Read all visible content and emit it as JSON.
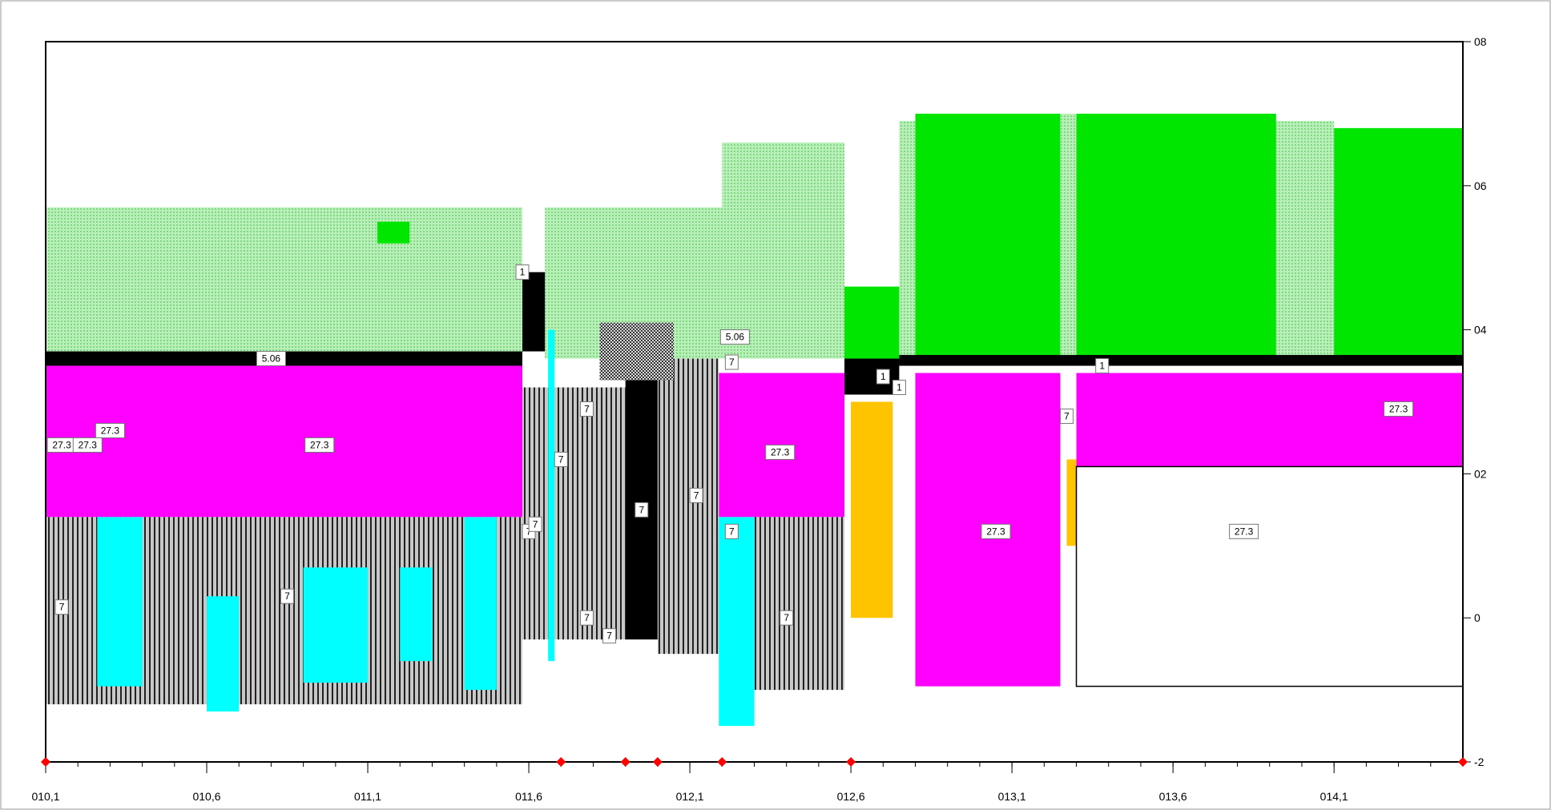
{
  "chart_data": {
    "type": "area",
    "title": "",
    "xlabel": "",
    "ylabel": "",
    "xlim": [
      10.0,
      14.4
    ],
    "ylim": [
      -2,
      8
    ],
    "x_ticks": [
      {
        "value": 10.0,
        "label": "010,1"
      },
      {
        "value": 10.5,
        "label": "010,6"
      },
      {
        "value": 11.0,
        "label": "011,1"
      },
      {
        "value": 11.5,
        "label": "011,6"
      },
      {
        "value": 12.0,
        "label": "012,1"
      },
      {
        "value": 12.5,
        "label": "012,6"
      },
      {
        "value": 13.0,
        "label": "013,1"
      },
      {
        "value": 13.5,
        "label": "013,6"
      },
      {
        "value": 14.0,
        "label": "014,1"
      }
    ],
    "y_ticks": [
      {
        "value": 8,
        "label": "08"
      },
      {
        "value": 6,
        "label": "06"
      },
      {
        "value": 4,
        "label": "04"
      },
      {
        "value": 2,
        "label": "02"
      },
      {
        "value": 0,
        "label": "0"
      },
      {
        "value": -2,
        "label": "-2"
      }
    ],
    "markers_x": [
      10.0,
      11.6,
      11.8,
      11.9,
      12.1,
      12.5,
      14.4
    ],
    "colors": {
      "light_green": "#9be89b",
      "green": "#00e600",
      "black": "#000000",
      "magenta": "#ff00ff",
      "cyan": "#00ffff",
      "gray_stripe": "#b9b9b9",
      "orange": "#ffc400",
      "white": "#ffffff",
      "crosshatch": "#777777"
    },
    "layers": [
      {
        "kind": "light_green",
        "x0": 10.0,
        "x1": 11.48,
        "y0": 3.7,
        "y1": 5.7
      },
      {
        "kind": "light_green",
        "x0": 11.55,
        "x1": 12.48,
        "y0": 3.6,
        "y1": 5.7
      },
      {
        "kind": "light_green",
        "x0": 12.1,
        "x1": 12.48,
        "y0": 4.2,
        "y1": 6.6
      },
      {
        "kind": "light_green",
        "x0": 12.65,
        "x1": 12.7,
        "y0": 3.6,
        "y1": 6.9
      },
      {
        "kind": "light_green",
        "x0": 13.15,
        "x1": 13.2,
        "y0": 3.6,
        "y1": 7.0
      },
      {
        "kind": "light_green",
        "x0": 13.82,
        "x1": 14.0,
        "y0": 3.6,
        "y1": 6.9
      },
      {
        "kind": "green",
        "x0": 12.48,
        "x1": 12.65,
        "y0": 3.6,
        "y1": 4.6
      },
      {
        "kind": "green",
        "x0": 12.7,
        "x1": 13.15,
        "y0": 3.6,
        "y1": 7.0
      },
      {
        "kind": "green",
        "x0": 13.2,
        "x1": 13.82,
        "y0": 3.6,
        "y1": 7.0
      },
      {
        "kind": "green",
        "x0": 14.0,
        "x1": 14.4,
        "y0": 3.6,
        "y1": 6.8
      },
      {
        "kind": "green",
        "x0": 11.03,
        "x1": 11.13,
        "y0": 5.2,
        "y1": 5.5
      },
      {
        "kind": "black",
        "x0": 10.0,
        "x1": 11.48,
        "y0": 3.5,
        "y1": 3.7
      },
      {
        "kind": "black",
        "x0": 11.48,
        "x1": 11.55,
        "y0": 3.7,
        "y1": 4.8
      },
      {
        "kind": "black",
        "x0": 12.48,
        "x1": 12.65,
        "y0": 3.1,
        "y1": 3.6
      },
      {
        "kind": "black",
        "x0": 12.65,
        "x1": 14.4,
        "y0": 3.5,
        "y1": 3.65
      },
      {
        "kind": "black",
        "x0": 11.8,
        "x1": 11.9,
        "y0": -0.3,
        "y1": 3.3
      },
      {
        "kind": "magenta",
        "x0": 10.0,
        "x1": 11.48,
        "y0": 1.4,
        "y1": 3.5
      },
      {
        "kind": "magenta",
        "x0": 12.09,
        "x1": 12.48,
        "y0": 1.4,
        "y1": 3.4
      },
      {
        "kind": "magenta",
        "x0": 12.7,
        "x1": 13.15,
        "y0": -0.95,
        "y1": 3.4
      },
      {
        "kind": "magenta",
        "x0": 13.2,
        "x1": 14.4,
        "y0": 2.1,
        "y1": 3.4
      },
      {
        "kind": "gray_stripe",
        "x0": 10.0,
        "x1": 11.48,
        "y0": -1.2,
        "y1": 1.4
      },
      {
        "kind": "gray_stripe",
        "x0": 11.48,
        "x1": 11.8,
        "y0": -0.3,
        "y1": 3.2
      },
      {
        "kind": "gray_stripe",
        "x0": 11.9,
        "x1": 12.09,
        "y0": -0.5,
        "y1": 3.6
      },
      {
        "kind": "gray_stripe",
        "x0": 12.2,
        "x1": 12.48,
        "y0": -1.0,
        "y1": 1.4
      },
      {
        "kind": "cyan",
        "x0": 10.16,
        "x1": 10.3,
        "y0": -0.95,
        "y1": 1.4
      },
      {
        "kind": "cyan",
        "x0": 10.5,
        "x1": 10.6,
        "y0": -1.3,
        "y1": 0.3
      },
      {
        "kind": "cyan",
        "x0": 10.8,
        "x1": 11.0,
        "y0": -0.9,
        "y1": 0.7
      },
      {
        "kind": "cyan",
        "x0": 11.1,
        "x1": 11.2,
        "y0": -0.6,
        "y1": 0.7
      },
      {
        "kind": "cyan",
        "x0": 11.3,
        "x1": 11.4,
        "y0": -1.0,
        "y1": 1.4
      },
      {
        "kind": "cyan",
        "x0": 12.09,
        "x1": 12.2,
        "y0": -1.5,
        "y1": 1.4
      },
      {
        "kind": "cyan",
        "x0": 11.56,
        "x1": 11.58,
        "y0": -0.6,
        "y1": 4.0
      },
      {
        "kind": "orange",
        "x0": 12.5,
        "x1": 12.63,
        "y0": 0.0,
        "y1": 3.0
      },
      {
        "kind": "orange",
        "x0": 13.17,
        "x1": 13.2,
        "y0": 1.0,
        "y1": 2.2
      },
      {
        "kind": "crosshatch",
        "x0": 11.72,
        "x1": 11.95,
        "y0": 3.3,
        "y1": 4.1
      },
      {
        "kind": "white",
        "x0": 13.2,
        "x1": 14.4,
        "y0": -0.95,
        "y1": 2.1
      }
    ],
    "data_labels": [
      {
        "x": 10.05,
        "y": 2.4,
        "text": "27.3"
      },
      {
        "x": 10.13,
        "y": 2.4,
        "text": "27.3"
      },
      {
        "x": 10.2,
        "y": 2.6,
        "text": "27.3"
      },
      {
        "x": 10.85,
        "y": 2.4,
        "text": "27.3"
      },
      {
        "x": 12.28,
        "y": 2.3,
        "text": "27.3"
      },
      {
        "x": 12.95,
        "y": 1.2,
        "text": "27.3"
      },
      {
        "x": 13.72,
        "y": 1.2,
        "text": "27.3"
      },
      {
        "x": 14.2,
        "y": 2.9,
        "text": "27.3"
      },
      {
        "x": 10.7,
        "y": 3.6,
        "text": "5.06"
      },
      {
        "x": 12.14,
        "y": 3.9,
        "text": "5.06"
      },
      {
        "x": 10.05,
        "y": 0.15,
        "text": "7"
      },
      {
        "x": 10.75,
        "y": 0.3,
        "text": "7"
      },
      {
        "x": 11.6,
        "y": 2.2,
        "text": "7"
      },
      {
        "x": 11.68,
        "y": 2.9,
        "text": "7"
      },
      {
        "x": 11.5,
        "y": 1.2,
        "text": "7"
      },
      {
        "x": 11.52,
        "y": 1.3,
        "text": "7"
      },
      {
        "x": 11.68,
        "y": 0.0,
        "text": "7"
      },
      {
        "x": 11.75,
        "y": -0.25,
        "text": "7"
      },
      {
        "x": 11.85,
        "y": 1.5,
        "text": "7"
      },
      {
        "x": 12.02,
        "y": 1.7,
        "text": "7"
      },
      {
        "x": 12.13,
        "y": 1.2,
        "text": "7"
      },
      {
        "x": 12.13,
        "y": 3.55,
        "text": "7"
      },
      {
        "x": 12.3,
        "y": 0.0,
        "text": "7"
      },
      {
        "x": 13.17,
        "y": 2.8,
        "text": "7"
      },
      {
        "x": 11.48,
        "y": 4.8,
        "text": "1"
      },
      {
        "x": 12.6,
        "y": 3.35,
        "text": "1"
      },
      {
        "x": 12.65,
        "y": 3.2,
        "text": "1"
      },
      {
        "x": 13.28,
        "y": 3.5,
        "text": "1"
      }
    ]
  }
}
